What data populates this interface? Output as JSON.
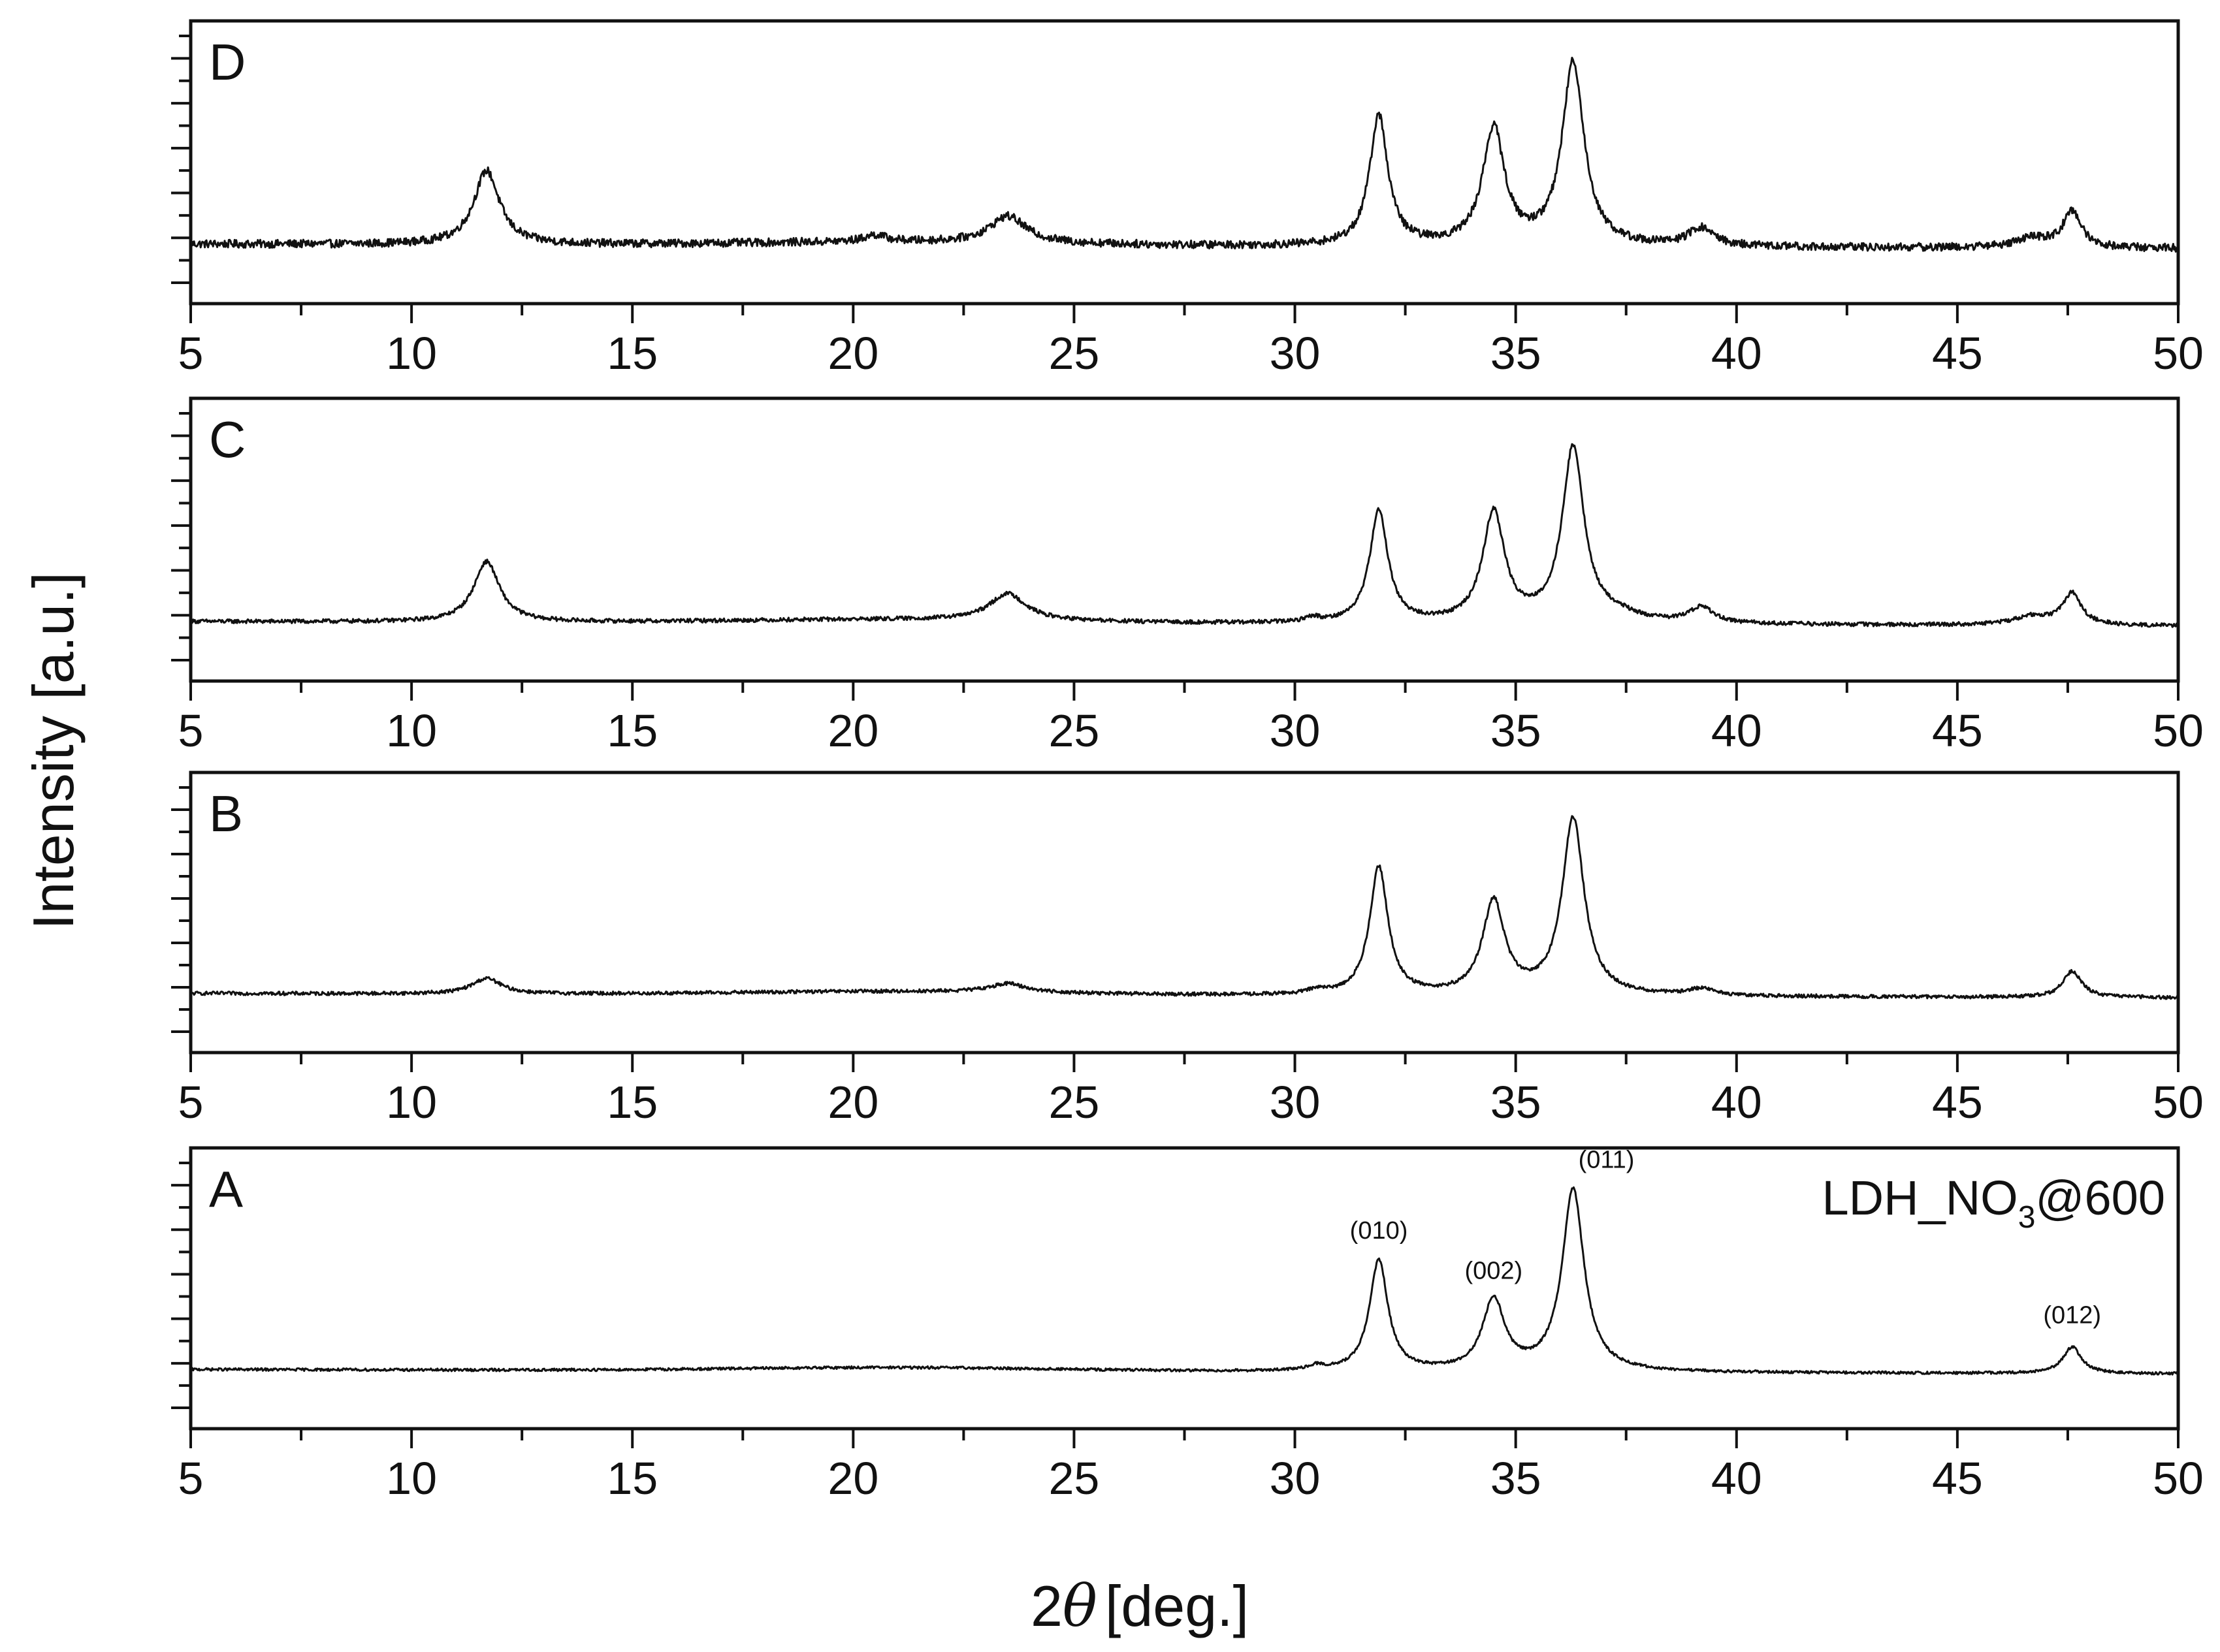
{
  "chart_data": {
    "type": "line",
    "ylabel": "Intensity [a.u.]",
    "xlabel_symbol": "θ",
    "xlabel_prefix": "2",
    "xlabel_unit": "[deg.]",
    "xlim": [
      5,
      50
    ],
    "x_major_ticks": [
      5,
      10,
      15,
      20,
      25,
      30,
      35,
      40,
      45,
      50
    ],
    "x_minor_step": 2.5,
    "y_ticks_labeled": false,
    "grid": false,
    "sample_label": {
      "main": "LDH_NO",
      "sub": "3",
      "tail": "@600"
    },
    "panels": [
      {
        "label": "D",
        "baseline": 0.12,
        "noise": 0.018,
        "slope": -0.02,
        "peaks": [
          {
            "x": 11.7,
            "height": 0.33,
            "width": 0.35
          },
          {
            "x": 20.5,
            "height": 0.03,
            "width": 0.3
          },
          {
            "x": 23.5,
            "height": 0.12,
            "width": 0.5
          },
          {
            "x": 31.9,
            "height": 0.58,
            "width": 0.25
          },
          {
            "x": 34.5,
            "height": 0.52,
            "width": 0.3
          },
          {
            "x": 36.3,
            "height": 0.82,
            "width": 0.3
          },
          {
            "x": 39.2,
            "height": 0.08,
            "width": 0.35
          },
          {
            "x": 46.7,
            "height": 0.04,
            "width": 0.5
          },
          {
            "x": 47.6,
            "height": 0.16,
            "width": 0.25
          }
        ],
        "annotations": []
      },
      {
        "label": "C",
        "baseline": 0.12,
        "noise": 0.009,
        "slope": -0.02,
        "peaks": [
          {
            "x": 11.7,
            "height": 0.27,
            "width": 0.35
          },
          {
            "x": 23.5,
            "height": 0.12,
            "width": 0.5
          },
          {
            "x": 30.4,
            "height": 0.02,
            "width": 0.2
          },
          {
            "x": 31.9,
            "height": 0.5,
            "width": 0.25
          },
          {
            "x": 34.5,
            "height": 0.49,
            "width": 0.3
          },
          {
            "x": 36.3,
            "height": 0.78,
            "width": 0.3
          },
          {
            "x": 37.3,
            "height": 0.03,
            "width": 0.6
          },
          {
            "x": 39.2,
            "height": 0.07,
            "width": 0.35
          },
          {
            "x": 46.7,
            "height": 0.04,
            "width": 0.5
          },
          {
            "x": 47.6,
            "height": 0.14,
            "width": 0.25
          }
        ],
        "annotations": []
      },
      {
        "label": "B",
        "baseline": 0.12,
        "noise": 0.008,
        "slope": -0.02,
        "peaks": [
          {
            "x": 11.7,
            "height": 0.07,
            "width": 0.4
          },
          {
            "x": 23.5,
            "height": 0.04,
            "width": 0.5
          },
          {
            "x": 30.5,
            "height": 0.02,
            "width": 0.2
          },
          {
            "x": 31.9,
            "height": 0.58,
            "width": 0.25
          },
          {
            "x": 34.5,
            "height": 0.42,
            "width": 0.3
          },
          {
            "x": 36.3,
            "height": 0.8,
            "width": 0.3
          },
          {
            "x": 39.2,
            "height": 0.03,
            "width": 0.35
          },
          {
            "x": 47.6,
            "height": 0.12,
            "width": 0.25
          }
        ],
        "annotations": []
      },
      {
        "label": "A",
        "baseline": 0.12,
        "noise": 0.006,
        "slope": -0.02,
        "peaks": [
          {
            "x": 30.5,
            "height": 0.02,
            "width": 0.2
          },
          {
            "x": 31.9,
            "height": 0.5,
            "width": 0.25
          },
          {
            "x": 34.5,
            "height": 0.32,
            "width": 0.3
          },
          {
            "x": 36.3,
            "height": 0.82,
            "width": 0.3
          },
          {
            "x": 47.6,
            "height": 0.12,
            "width": 0.25
          }
        ],
        "annotations": [
          {
            "text": "(010)",
            "x": 31.9,
            "anchor": "middle"
          },
          {
            "text": "(002)",
            "x": 34.5,
            "anchor": "middle"
          },
          {
            "text": "(011)",
            "x": 36.3,
            "anchor": "start"
          },
          {
            "text": "(012)",
            "x": 47.6,
            "anchor": "middle"
          }
        ]
      }
    ]
  }
}
